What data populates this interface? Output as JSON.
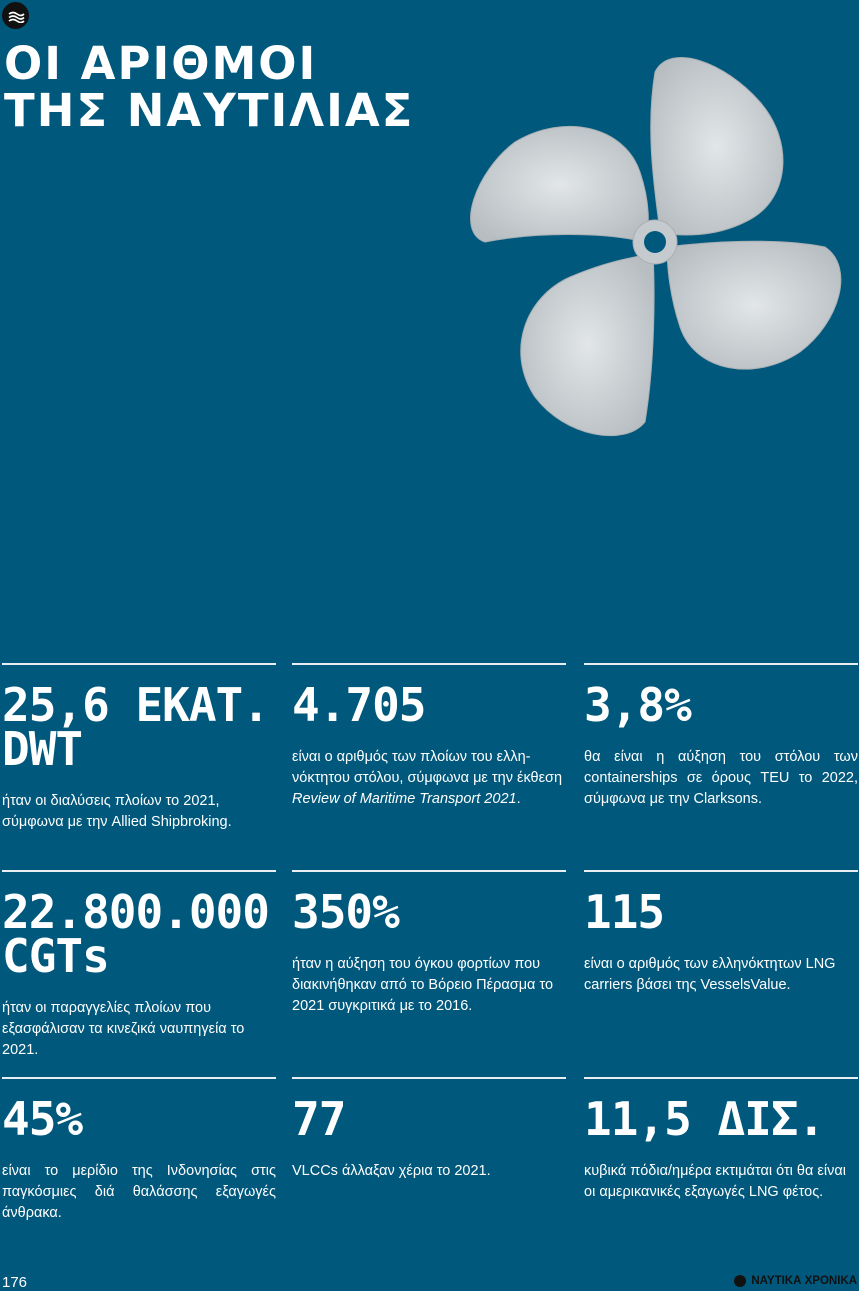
{
  "header": {
    "title_line1": "ΟΙ ΑΡΙΘΜΟΙ",
    "title_line2": "ΤΗΣ ΝΑΥΤΙΛΙΑΣ",
    "logo_icon": "waves-logo-icon",
    "illustration_icon": "ship-propeller-icon"
  },
  "stats": [
    {
      "value": "25,6 ΕΚΑΤ. DWT",
      "text": "ήταν οι διαλύσεις πλοίων το 2021, σύμφωνα με την Allied Shipbroking."
    },
    {
      "value": "4.705",
      "text_before": "είναι ο αριθμός των πλοίων του ελλη-νόκτητου στόλου, σύμφωνα με την έκθεση ",
      "text_italic": "Review of Maritime Transport 2021",
      "text_after": "."
    },
    {
      "value": "3,8%",
      "text": "θα είναι η αύξηση του στόλου των containerships σε όρους TEU το 2022, σύμφωνα με την Clarksons."
    },
    {
      "value": "22.800.000 CGTs",
      "text": "ήταν οι παραγγελίες πλοίων που εξασφάλισαν τα κινεζικά ναυπηγεία το 2021."
    },
    {
      "value": "350%",
      "text": "ήταν η αύξηση του όγκου φορτίων που διακινήθηκαν από το Βόρειο Πέρασμα το 2021 συγκριτικά με το 2016."
    },
    {
      "value": "115",
      "text": "είναι ο αριθμός των ελληνόκτητων LNG carriers βάσει της VesselsValue."
    },
    {
      "value": "45%",
      "text": "είναι το μερίδιο της Ινδονησίας στις παγκόσμιες διά θαλάσσης εξαγωγές άνθρακα."
    },
    {
      "value": "77",
      "text": "VLCCs άλλαξαν χέρια το 2021."
    },
    {
      "value": "11,5 ΔΙΣ.",
      "text": "κυβικά πόδια/ημέρα εκτιμάται ότι θα είναι οι αμερικανικές εξαγωγές LNG φέτος."
    }
  ],
  "footer": {
    "page_number": "176",
    "brand": "ΝΑΥΤΙΚΑ ΧΡΟΝΙΚΑ"
  },
  "colors": {
    "background": "#00587c",
    "text": "#ffffff",
    "propeller": "#c9ced1"
  }
}
